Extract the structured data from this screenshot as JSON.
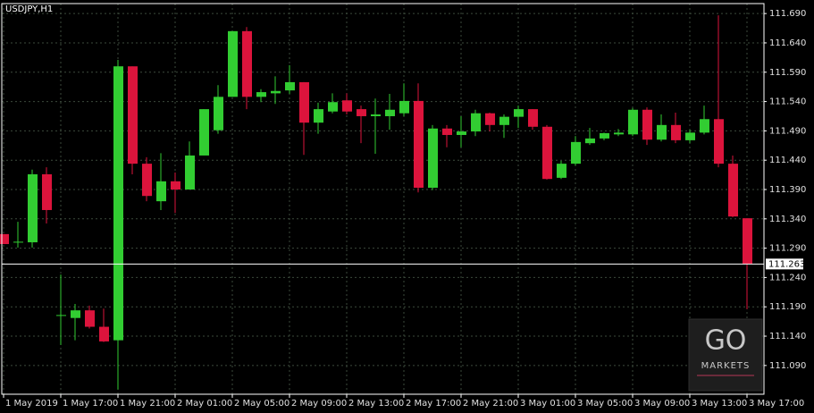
{
  "chart_data": {
    "type": "candlestick",
    "title": "USDJPY,H1",
    "categories": [
      "1 May 2019",
      null,
      null,
      null,
      "1 May 17:00",
      null,
      null,
      null,
      "1 May 21:00",
      null,
      null,
      null,
      "2 May 01:00",
      null,
      null,
      null,
      "2 May 05:00",
      null,
      null,
      null,
      "2 May 09:00",
      null,
      null,
      null,
      "2 May 13:00",
      null,
      null,
      null,
      "2 May 17:00",
      null,
      null,
      null,
      "2 May 21:00",
      null,
      null,
      null,
      "3 May 01:00",
      null,
      null,
      null,
      "3 May 05:00",
      null,
      null,
      null,
      "3 May 09:00",
      null,
      null,
      null,
      "3 May 13:00",
      null,
      null,
      null,
      "3 May 17:00"
    ],
    "open": [
      111.314,
      111.3,
      111.3,
      111.416,
      111.175,
      111.171,
      111.184,
      111.156,
      111.133,
      111.6,
      111.434,
      111.37,
      111.404,
      111.39,
      111.448,
      111.491,
      111.548,
      111.66,
      111.548,
      111.554,
      111.559,
      111.573,
      111.504,
      111.523,
      111.542,
      111.527,
      111.515,
      111.515,
      111.52,
      111.541,
      111.393,
      111.494,
      111.483,
      111.489,
      111.52,
      111.5,
      111.514,
      111.527,
      111.497,
      111.41,
      111.434,
      111.469,
      111.477,
      111.484,
      111.484,
      111.526,
      111.475,
      111.5,
      111.474,
      111.487,
      111.51,
      111.434,
      111.341
    ],
    "high": [
      111.314,
      111.335,
      111.424,
      111.428,
      111.245,
      111.195,
      111.192,
      111.187,
      111.611,
      111.6,
      111.445,
      111.452,
      111.419,
      111.472,
      111.527,
      111.568,
      111.66,
      111.667,
      111.561,
      111.583,
      111.602,
      111.573,
      111.538,
      111.554,
      111.554,
      111.533,
      111.545,
      111.553,
      111.571,
      111.571,
      111.5,
      111.5,
      111.515,
      111.526,
      111.521,
      111.518,
      111.533,
      111.527,
      111.5,
      111.439,
      111.481,
      111.495,
      111.487,
      111.493,
      111.529,
      111.53,
      111.518,
      111.521,
      111.492,
      111.533,
      111.687,
      111.448,
      111.341
    ],
    "low": [
      111.297,
      111.291,
      111.291,
      111.332,
      111.125,
      111.133,
      111.153,
      111.13,
      111.049,
      111.416,
      111.37,
      111.355,
      111.35,
      111.39,
      111.448,
      111.485,
      111.548,
      111.527,
      111.539,
      111.536,
      111.553,
      111.449,
      111.485,
      111.52,
      111.518,
      111.469,
      111.451,
      111.492,
      111.515,
      111.385,
      111.389,
      111.462,
      111.462,
      111.481,
      111.489,
      111.478,
      111.495,
      111.492,
      111.407,
      111.408,
      111.431,
      111.466,
      111.474,
      111.481,
      111.481,
      111.466,
      111.472,
      111.469,
      111.469,
      111.484,
      111.428,
      111.343,
      111.186
    ],
    "close": [
      111.297,
      111.301,
      111.416,
      111.355,
      111.176,
      111.184,
      111.156,
      111.131,
      111.6,
      111.434,
      111.379,
      111.404,
      111.39,
      111.448,
      111.527,
      111.548,
      111.66,
      111.548,
      111.556,
      111.558,
      111.573,
      111.504,
      111.527,
      111.539,
      111.523,
      111.515,
      111.518,
      111.526,
      111.541,
      111.393,
      111.494,
      111.483,
      111.489,
      111.52,
      111.5,
      111.514,
      111.527,
      111.497,
      111.408,
      111.434,
      111.471,
      111.477,
      111.486,
      111.487,
      111.526,
      111.475,
      111.5,
      111.474,
      111.487,
      111.51,
      111.434,
      111.344,
      111.263
    ],
    "up_color": "#32cd32",
    "down_color": "#dc143c",
    "current_price": 111.263,
    "ylim": [
      111.041,
      111.707
    ],
    "yticks": [
      {
        "value": 111.69,
        "label": "111.690"
      },
      {
        "value": 111.64,
        "label": "111.640"
      },
      {
        "value": 111.59,
        "label": "111.590"
      },
      {
        "value": 111.54,
        "label": "111.540"
      },
      {
        "value": 111.49,
        "label": "111.490"
      },
      {
        "value": 111.44,
        "label": "111.440"
      },
      {
        "value": 111.39,
        "label": "111.390"
      },
      {
        "value": 111.34,
        "label": "111.340"
      },
      {
        "value": 111.29,
        "label": "111.290"
      },
      {
        "value": 111.24,
        "label": "111.240"
      },
      {
        "value": 111.19,
        "label": "111.190"
      },
      {
        "value": 111.14,
        "label": "111.140"
      },
      {
        "value": 111.09,
        "label": "111.090"
      }
    ],
    "grid": true,
    "watermark": {
      "logo": "GO",
      "name": "MARKETS"
    }
  }
}
